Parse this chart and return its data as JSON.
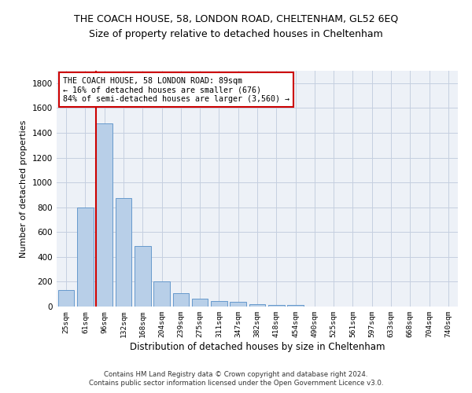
{
  "title": "THE COACH HOUSE, 58, LONDON ROAD, CHELTENHAM, GL52 6EQ",
  "subtitle": "Size of property relative to detached houses in Cheltenham",
  "xlabel": "Distribution of detached houses by size in Cheltenham",
  "ylabel": "Number of detached properties",
  "categories": [
    "25sqm",
    "61sqm",
    "96sqm",
    "132sqm",
    "168sqm",
    "204sqm",
    "239sqm",
    "275sqm",
    "311sqm",
    "347sqm",
    "382sqm",
    "418sqm",
    "454sqm",
    "490sqm",
    "525sqm",
    "561sqm",
    "597sqm",
    "633sqm",
    "668sqm",
    "704sqm",
    "740sqm"
  ],
  "values": [
    130,
    800,
    1475,
    875,
    490,
    205,
    105,
    65,
    42,
    35,
    22,
    15,
    10,
    0,
    0,
    0,
    0,
    0,
    0,
    0,
    0
  ],
  "bar_color": "#b8cfe8",
  "bar_edge_color": "#6699cc",
  "vline_bar_index": 2,
  "vline_color": "#cc0000",
  "annotation_text": "THE COACH HOUSE, 58 LONDON ROAD: 89sqm\n← 16% of detached houses are smaller (676)\n84% of semi-detached houses are larger (3,560) →",
  "annotation_box_color": "#cc0000",
  "ylim": [
    0,
    1900
  ],
  "yticks": [
    0,
    200,
    400,
    600,
    800,
    1000,
    1200,
    1400,
    1600,
    1800
  ],
  "footer1": "Contains HM Land Registry data © Crown copyright and database right 2024.",
  "footer2": "Contains public sector information licensed under the Open Government Licence v3.0.",
  "background_color": "#edf1f7",
  "grid_color": "#c5cfe0",
  "title_fontsize": 9,
  "subtitle_fontsize": 9,
  "ylabel_fontsize": 8,
  "xlabel_fontsize": 8.5
}
